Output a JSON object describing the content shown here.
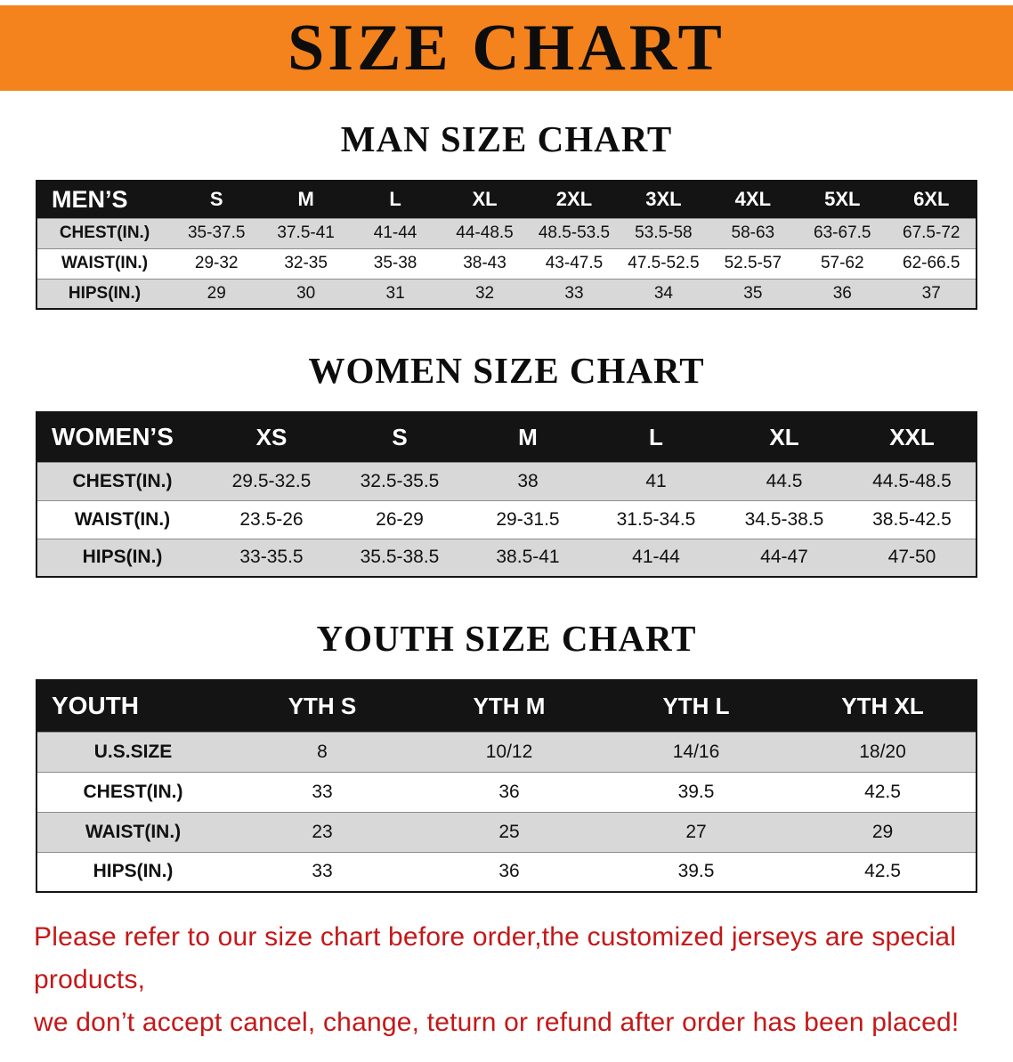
{
  "colors": {
    "banner_bg": "#f5831d",
    "header_bg": "#141414",
    "stripe": "#d8d8d8",
    "footer_color": "#c41818"
  },
  "banner": {
    "title": "SIZE CHART"
  },
  "men": {
    "heading": "MAN SIZE CHART",
    "header": [
      "MEN’S",
      "S",
      "M",
      "L",
      "XL",
      "2XL",
      "3XL",
      "4XL",
      "5XL",
      "6XL"
    ],
    "rows": [
      [
        "CHEST(IN.)",
        "35-37.5",
        "37.5-41",
        "41-44",
        "44-48.5",
        "48.5-53.5",
        "53.5-58",
        "58-63",
        "63-67.5",
        "67.5-72"
      ],
      [
        "WAIST(IN.)",
        "29-32",
        "32-35",
        "35-38",
        "38-43",
        "43-47.5",
        "47.5-52.5",
        "52.5-57",
        "57-62",
        "62-66.5"
      ],
      [
        "HIPS(IN.)",
        "29",
        "30",
        "31",
        "32",
        "33",
        "34",
        "35",
        "36",
        "37"
      ]
    ]
  },
  "women": {
    "heading": "WOMEN SIZE CHART",
    "header": [
      "WOMEN’S",
      "XS",
      "S",
      "M",
      "L",
      "XL",
      "XXL"
    ],
    "rows": [
      [
        "CHEST(IN.)",
        "29.5-32.5",
        "32.5-35.5",
        "38",
        "41",
        "44.5",
        "44.5-48.5"
      ],
      [
        "WAIST(IN.)",
        "23.5-26",
        "26-29",
        "29-31.5",
        "31.5-34.5",
        "34.5-38.5",
        "38.5-42.5"
      ],
      [
        "HIPS(IN.)",
        "33-35.5",
        "35.5-38.5",
        "38.5-41",
        "41-44",
        "44-47",
        "47-50"
      ]
    ]
  },
  "youth": {
    "heading": "YOUTH SIZE CHART",
    "header": [
      "YOUTH",
      "YTH S",
      "YTH M",
      "YTH L",
      "YTH XL"
    ],
    "rows": [
      [
        "U.S.SIZE",
        "8",
        "10/12",
        "14/16",
        "18/20"
      ],
      [
        "CHEST(IN.)",
        "33",
        "36",
        "39.5",
        "42.5"
      ],
      [
        "WAIST(IN.)",
        "23",
        "25",
        "27",
        "29"
      ],
      [
        "HIPS(IN.)",
        "33",
        "36",
        "39.5",
        "42.5"
      ]
    ]
  },
  "footer": {
    "line1": "Please refer to our size chart before order,the customized jerseys are special products,",
    "line2": "we don’t accept cancel, change, teturn or refund after order has been placed!"
  }
}
